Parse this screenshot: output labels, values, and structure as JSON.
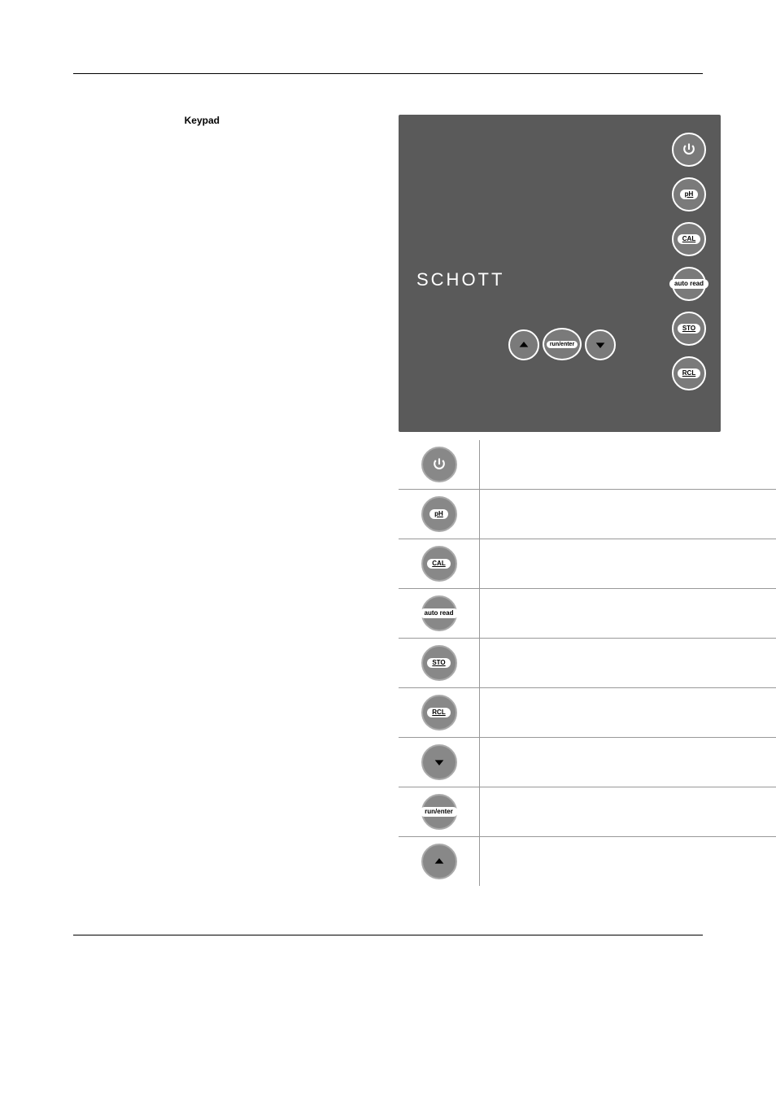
{
  "page": {
    "section_heading": "Keypad"
  },
  "device": {
    "brand": "SCHOTT",
    "panel_background": "#5a5a5a",
    "button_background": "#7a7a7a",
    "button_border": "#ffffff",
    "right_buttons": [
      {
        "name": "power-icon",
        "type": "svg-power",
        "label": null
      },
      {
        "name": "ph-button",
        "type": "pill",
        "label": "pH",
        "underline": true
      },
      {
        "name": "cal-button",
        "type": "pill",
        "label": "CAL",
        "underline": true
      },
      {
        "name": "autoread-button",
        "type": "pill",
        "label": "auto read",
        "underline": false
      },
      {
        "name": "sto-button",
        "type": "pill",
        "label": "STO",
        "underline": true
      },
      {
        "name": "rcl-button",
        "type": "pill",
        "label": "RCL",
        "underline": true
      }
    ],
    "bottom_buttons": [
      {
        "name": "up-arrow-button",
        "type": "svg-up"
      },
      {
        "name": "runenter-button",
        "type": "pill",
        "label": "run/enter",
        "underline": false
      },
      {
        "name": "down-arrow-button",
        "type": "svg-down"
      }
    ]
  },
  "table": {
    "rows": [
      {
        "icon_name": "power-icon",
        "icon_type": "svg-power",
        "icon_label": null,
        "underline": false,
        "desc": ""
      },
      {
        "icon_name": "ph-button",
        "icon_type": "pill",
        "icon_label": "pH",
        "underline": true,
        "desc": ""
      },
      {
        "icon_name": "cal-button",
        "icon_type": "pill",
        "icon_label": "CAL",
        "underline": true,
        "desc": ""
      },
      {
        "icon_name": "autoread-button",
        "icon_type": "pill",
        "icon_label": "auto read",
        "underline": false,
        "desc": ""
      },
      {
        "icon_name": "sto-button",
        "icon_type": "pill",
        "icon_label": "STO",
        "underline": true,
        "desc": ""
      },
      {
        "icon_name": "rcl-button",
        "icon_type": "pill",
        "icon_label": "RCL",
        "underline": true,
        "desc": ""
      },
      {
        "icon_name": "down-arrow-button",
        "icon_type": "svg-down",
        "icon_label": null,
        "underline": false,
        "desc": ""
      },
      {
        "icon_name": "runenter-button",
        "icon_type": "pill",
        "icon_label": "run/enter",
        "underline": false,
        "desc": ""
      },
      {
        "icon_name": "up-arrow-button",
        "icon_type": "svg-up",
        "icon_label": null,
        "underline": false,
        "desc": ""
      }
    ]
  },
  "colors": {
    "rule": "#000000",
    "table_border": "#999999",
    "table_button_bg": "#888888",
    "table_button_border": "#aaaaaa",
    "pill_bg": "#ffffff",
    "pill_text": "#000000"
  }
}
